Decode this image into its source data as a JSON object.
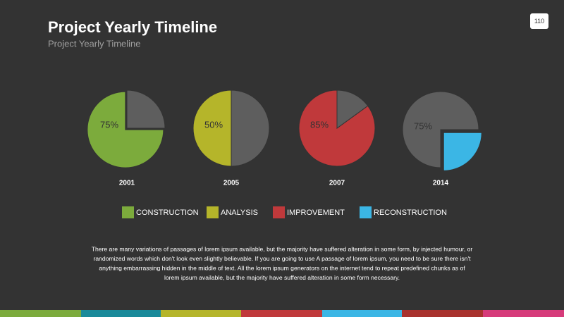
{
  "title": "Project Yearly Timeline",
  "subtitle": "Project Yearly Timeline",
  "page_number": "110",
  "legend": [
    {
      "name": "CONSTRUCTION",
      "color": "#7cab3c"
    },
    {
      "name": "ANALYSIS",
      "color": "#b5b52a"
    },
    {
      "name": "IMPROVEMENT",
      "color": "#c0393b"
    },
    {
      "name": "RECONSTRUCTION",
      "color": "#3bb6e5"
    }
  ],
  "chart_data": [
    {
      "type": "pie",
      "title": "2001",
      "values": [
        75
      ],
      "value_labels": [
        "75%"
      ],
      "colors": [
        "#7cab3c",
        "#5e5e5e"
      ]
    },
    {
      "type": "pie",
      "title": "2005",
      "values": [
        50
      ],
      "value_labels": [
        "50%"
      ],
      "colors": [
        "#b5b52a",
        "#5e5e5e"
      ]
    },
    {
      "type": "pie",
      "title": "2007",
      "values": [
        85
      ],
      "value_labels": [
        "85%"
      ],
      "colors": [
        "#c0393b",
        "#5e5e5e"
      ]
    },
    {
      "type": "pie",
      "title": "2014",
      "values": [
        75
      ],
      "value_labels": [
        "75%"
      ],
      "colors": [
        "#5e5e5e",
        "#3bb6e5"
      ]
    }
  ],
  "paragraph": [
    "There are many variations of passages of lorem ipsum available, but the majority have suffered alteration in some form, by injected humour, or",
    "randomized words which don't look even slightly believable. If you are going to use A passage of lorem ipsum, you need to be sure there isn't",
    "anything embarrassing hidden in the middle of text. All the lorem ipsum generators on the internet tend to repeat predefined chunks as of",
    "lorem ipsum available, but the majority have suffered alteration in some form necessary."
  ]
}
